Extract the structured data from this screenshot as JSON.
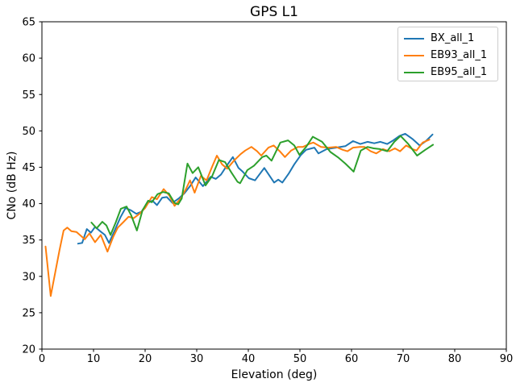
{
  "chart_data": {
    "type": "line",
    "title": "GPS L1",
    "xlabel": "Elevation (deg)",
    "ylabel": "CNo (dB Hz)",
    "xlim": [
      0,
      90
    ],
    "ylim": [
      20,
      65
    ],
    "xticks": [
      0,
      10,
      20,
      30,
      40,
      50,
      60,
      70,
      80,
      90
    ],
    "yticks": [
      20,
      25,
      30,
      35,
      40,
      45,
      50,
      55,
      60,
      65
    ],
    "grid": false,
    "legend_position": "upper right",
    "series": [
      {
        "name": "BX_all_1",
        "color": "#1f77b4",
        "points": [
          [
            7.0,
            34.5
          ],
          [
            7.8,
            34.6
          ],
          [
            8.7,
            36.5
          ],
          [
            9.5,
            36.0
          ],
          [
            10.3,
            36.8
          ],
          [
            11.3,
            36.2
          ],
          [
            12.2,
            35.7
          ],
          [
            13.0,
            34.6
          ],
          [
            14.1,
            36.3
          ],
          [
            15.2,
            38.1
          ],
          [
            16.2,
            39.4
          ],
          [
            17.2,
            39.1
          ],
          [
            18.3,
            38.6
          ],
          [
            19.3,
            38.9
          ],
          [
            20.5,
            40.1
          ],
          [
            21.4,
            40.4
          ],
          [
            22.3,
            39.8
          ],
          [
            23.3,
            40.8
          ],
          [
            24.2,
            40.9
          ],
          [
            25.3,
            40.1
          ],
          [
            26.5,
            40.7
          ],
          [
            27.6,
            41.4
          ],
          [
            28.7,
            42.4
          ],
          [
            29.8,
            43.6
          ],
          [
            31.2,
            42.4
          ],
          [
            32.7,
            43.7
          ],
          [
            33.7,
            43.4
          ],
          [
            34.7,
            44.0
          ],
          [
            35.9,
            45.3
          ],
          [
            37.0,
            46.4
          ],
          [
            38.1,
            44.9
          ],
          [
            38.9,
            44.4
          ],
          [
            40.1,
            43.5
          ],
          [
            41.3,
            43.2
          ],
          [
            43.1,
            44.9
          ],
          [
            45.0,
            42.9
          ],
          [
            45.8,
            43.3
          ],
          [
            46.6,
            42.9
          ],
          [
            47.8,
            44.1
          ],
          [
            48.9,
            45.4
          ],
          [
            50.2,
            46.7
          ],
          [
            51.2,
            47.4
          ],
          [
            52.8,
            47.7
          ],
          [
            53.6,
            46.9
          ],
          [
            55.2,
            47.5
          ],
          [
            57.0,
            47.7
          ],
          [
            58.8,
            47.9
          ],
          [
            60.3,
            48.6
          ],
          [
            61.7,
            48.2
          ],
          [
            63.1,
            48.5
          ],
          [
            64.4,
            48.3
          ],
          [
            65.6,
            48.5
          ],
          [
            66.9,
            48.2
          ],
          [
            68.1,
            48.7
          ],
          [
            69.3,
            49.3
          ],
          [
            70.4,
            49.6
          ],
          [
            71.8,
            48.9
          ],
          [
            73.2,
            48.0
          ],
          [
            74.4,
            48.6
          ],
          [
            75.7,
            49.5
          ]
        ]
      },
      {
        "name": "EB93_all_1",
        "color": "#ff7f0e",
        "points": [
          [
            0.7,
            34.1
          ],
          [
            1.7,
            27.3
          ],
          [
            2.6,
            30.6
          ],
          [
            3.4,
            33.6
          ],
          [
            4.2,
            36.3
          ],
          [
            4.9,
            36.7
          ],
          [
            5.7,
            36.2
          ],
          [
            6.7,
            36.1
          ],
          [
            7.5,
            35.6
          ],
          [
            8.3,
            35.1
          ],
          [
            9.2,
            35.9
          ],
          [
            10.3,
            34.7
          ],
          [
            11.4,
            35.7
          ],
          [
            12.7,
            33.4
          ],
          [
            13.8,
            35.4
          ],
          [
            14.7,
            36.7
          ],
          [
            15.7,
            37.4
          ],
          [
            16.8,
            38.2
          ],
          [
            17.8,
            38.0
          ],
          [
            18.9,
            38.6
          ],
          [
            20.0,
            39.4
          ],
          [
            21.3,
            40.9
          ],
          [
            22.3,
            40.6
          ],
          [
            23.6,
            42.0
          ],
          [
            24.7,
            41.1
          ],
          [
            25.7,
            39.7
          ],
          [
            26.9,
            40.7
          ],
          [
            27.9,
            42.0
          ],
          [
            28.7,
            43.2
          ],
          [
            29.6,
            41.5
          ],
          [
            30.8,
            43.8
          ],
          [
            31.9,
            43.2
          ],
          [
            33.0,
            45.1
          ],
          [
            33.9,
            46.6
          ],
          [
            34.9,
            45.4
          ],
          [
            35.9,
            44.8
          ],
          [
            37.2,
            45.9
          ],
          [
            38.5,
            46.8
          ],
          [
            39.4,
            47.3
          ],
          [
            40.6,
            47.8
          ],
          [
            41.7,
            47.2
          ],
          [
            42.5,
            46.6
          ],
          [
            43.9,
            47.7
          ],
          [
            44.9,
            48.0
          ],
          [
            46.1,
            47.2
          ],
          [
            47.1,
            46.4
          ],
          [
            48.3,
            47.3
          ],
          [
            49.6,
            47.8
          ],
          [
            50.6,
            47.8
          ],
          [
            51.8,
            48.2
          ],
          [
            52.6,
            48.4
          ],
          [
            54.1,
            47.8
          ],
          [
            55.5,
            47.7
          ],
          [
            57.0,
            47.8
          ],
          [
            58.3,
            47.4
          ],
          [
            59.2,
            47.2
          ],
          [
            60.3,
            47.7
          ],
          [
            61.6,
            47.8
          ],
          [
            62.5,
            47.8
          ],
          [
            63.7,
            47.2
          ],
          [
            64.8,
            46.9
          ],
          [
            66.1,
            47.5
          ],
          [
            67.3,
            47.2
          ],
          [
            68.4,
            47.6
          ],
          [
            69.4,
            47.2
          ],
          [
            70.6,
            48.0
          ],
          [
            71.8,
            47.5
          ],
          [
            72.6,
            47.3
          ],
          [
            73.8,
            48.4
          ],
          [
            75.1,
            48.8
          ]
        ]
      },
      {
        "name": "EB95_all_1",
        "color": "#2ca02c",
        "points": [
          [
            9.6,
            37.4
          ],
          [
            10.6,
            36.6
          ],
          [
            11.7,
            37.5
          ],
          [
            12.5,
            37.0
          ],
          [
            13.3,
            35.7
          ],
          [
            14.3,
            37.4
          ],
          [
            15.3,
            39.3
          ],
          [
            16.4,
            39.6
          ],
          [
            17.3,
            38.4
          ],
          [
            18.4,
            36.3
          ],
          [
            19.5,
            39.1
          ],
          [
            20.6,
            40.4
          ],
          [
            21.3,
            40.2
          ],
          [
            22.4,
            41.3
          ],
          [
            23.5,
            41.6
          ],
          [
            24.6,
            41.4
          ],
          [
            25.7,
            40.1
          ],
          [
            26.4,
            39.9
          ],
          [
            27.1,
            40.7
          ],
          [
            28.2,
            45.5
          ],
          [
            29.2,
            44.2
          ],
          [
            30.3,
            45.0
          ],
          [
            31.7,
            42.5
          ],
          [
            33.0,
            43.8
          ],
          [
            34.3,
            46.0
          ],
          [
            35.5,
            45.7
          ],
          [
            36.7,
            44.3
          ],
          [
            37.9,
            43.0
          ],
          [
            38.4,
            42.8
          ],
          [
            39.8,
            44.6
          ],
          [
            41.1,
            45.2
          ],
          [
            42.7,
            46.4
          ],
          [
            43.5,
            46.6
          ],
          [
            44.5,
            45.9
          ],
          [
            46.2,
            48.4
          ],
          [
            47.7,
            48.7
          ],
          [
            48.9,
            48.0
          ],
          [
            49.9,
            46.7
          ],
          [
            51.2,
            47.8
          ],
          [
            52.5,
            49.2
          ],
          [
            54.3,
            48.5
          ],
          [
            55.9,
            47.1
          ],
          [
            57.5,
            46.3
          ],
          [
            58.8,
            45.5
          ],
          [
            60.4,
            44.4
          ],
          [
            61.8,
            47.3
          ],
          [
            63.1,
            47.8
          ],
          [
            64.3,
            47.6
          ],
          [
            65.5,
            47.5
          ],
          [
            66.9,
            47.2
          ],
          [
            68.3,
            48.5
          ],
          [
            69.5,
            49.3
          ],
          [
            71.0,
            48.2
          ],
          [
            72.7,
            46.6
          ],
          [
            74.3,
            47.4
          ],
          [
            75.8,
            48.1
          ]
        ]
      }
    ]
  }
}
